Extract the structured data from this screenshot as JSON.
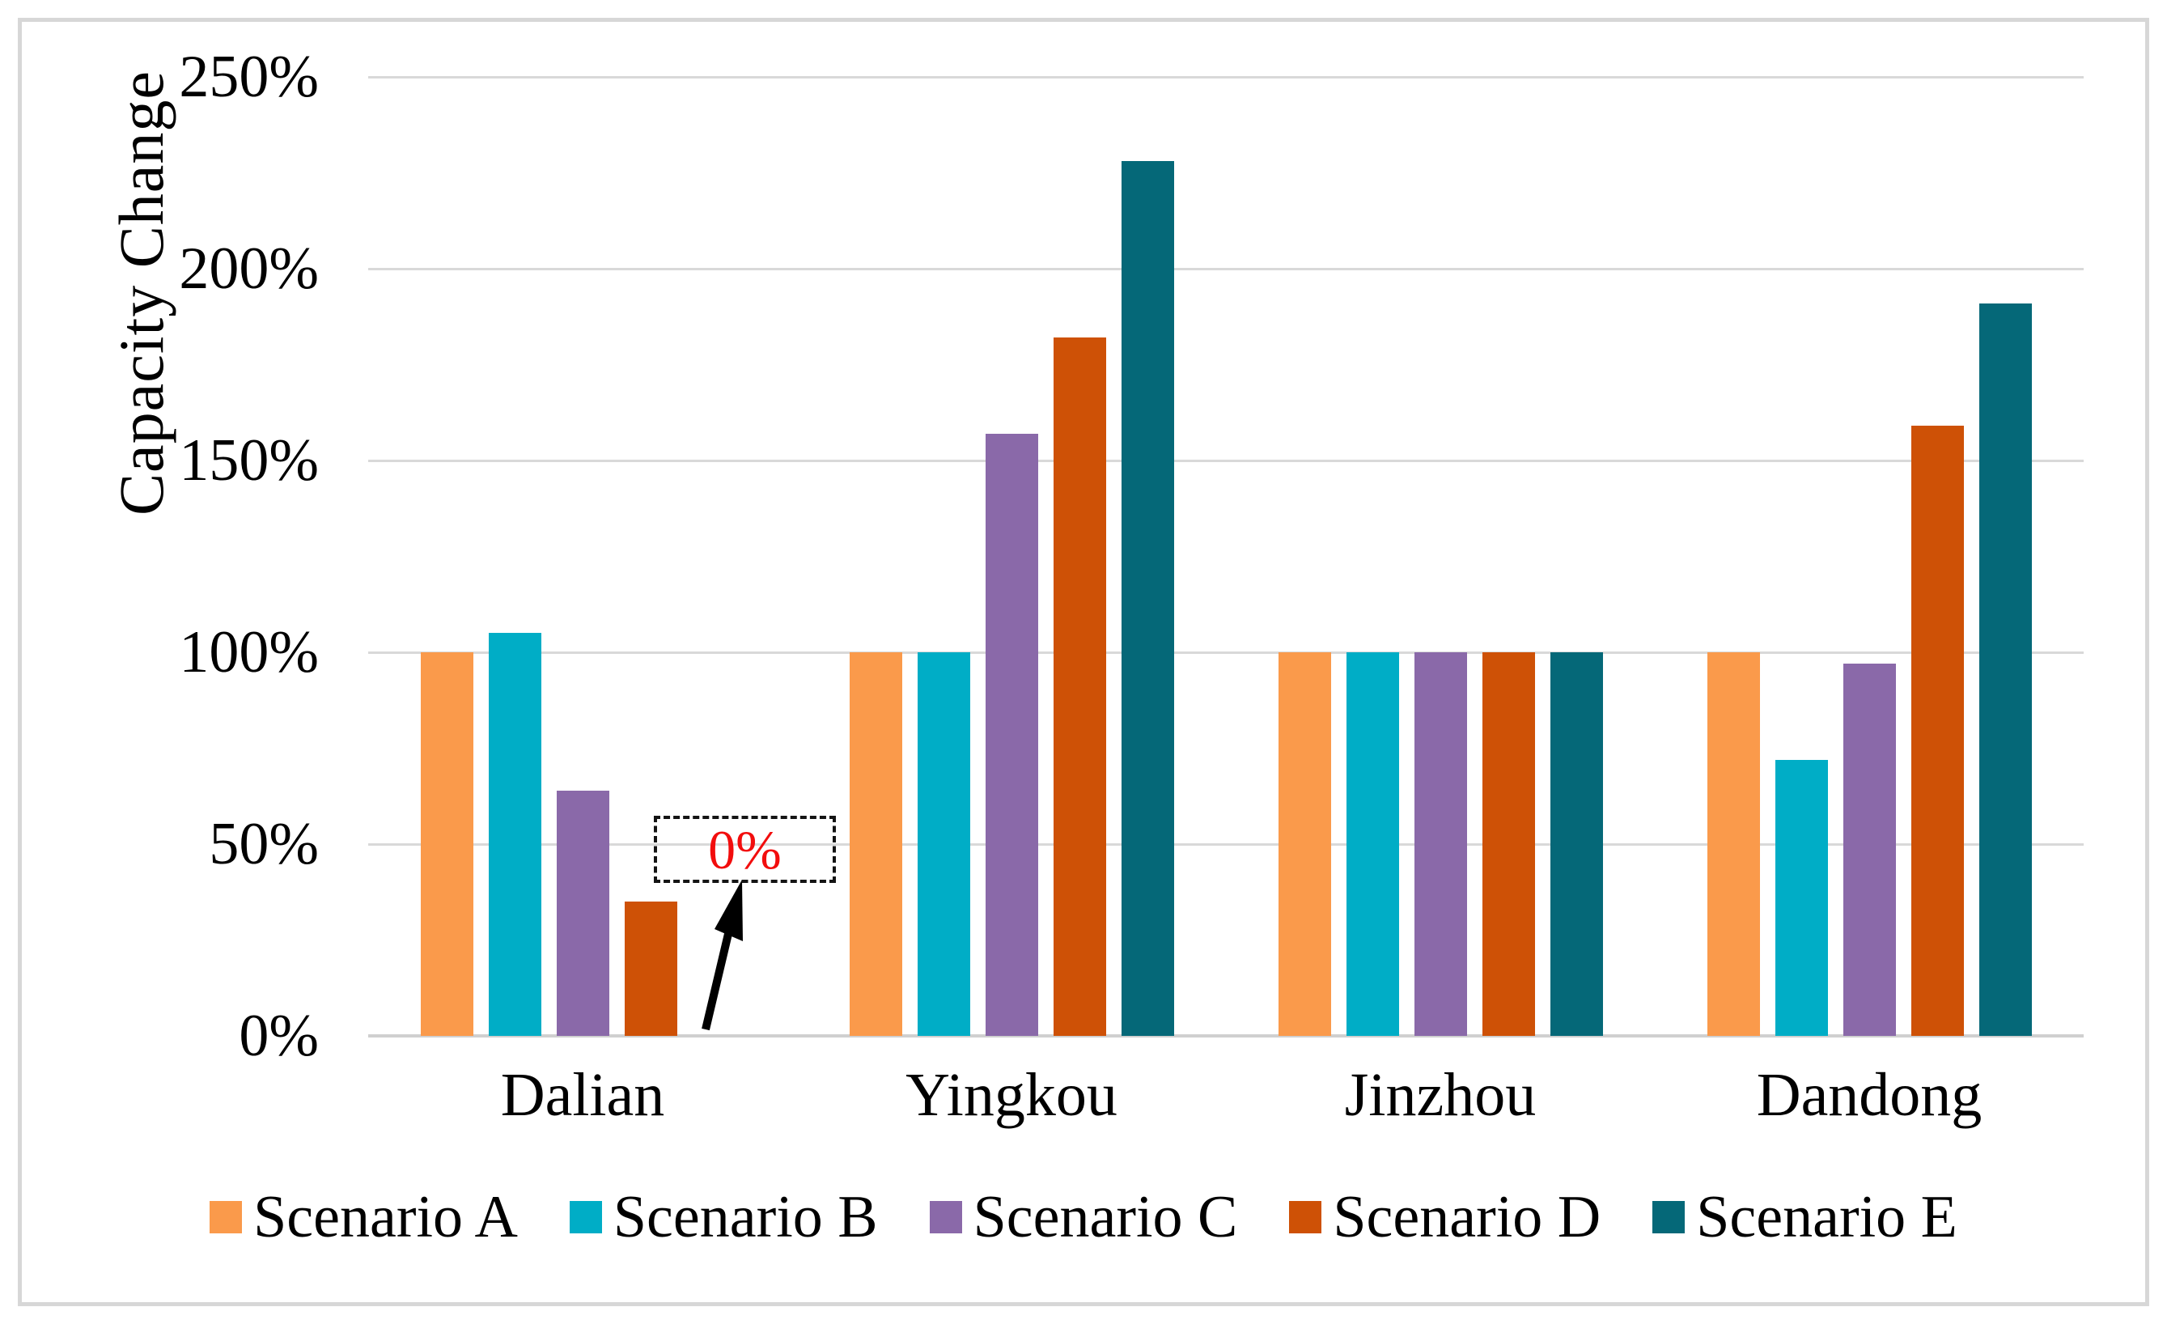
{
  "figure": {
    "y_axis_title": "Capacity Change",
    "y_ticks": [
      "250%",
      "200%",
      "150%",
      "100%",
      "50%",
      "0%"
    ],
    "x_labels": [
      "Dalian",
      "Yingkou",
      "Jinzhou",
      "Dandong"
    ],
    "annotation_text": "0%",
    "colors": {
      "gridline": "#d9d9d9",
      "baseline": "#d0d0d0",
      "frame_border": "#d7d7d7",
      "annotation_text": "#f20d0d",
      "annotation_border": "#141414",
      "arrow": "#000000"
    }
  },
  "chart_data": {
    "type": "bar",
    "title": "",
    "xlabel": "",
    "ylabel": "Capacity Change",
    "categories": [
      "Dalian",
      "Yingkou",
      "Jinzhou",
      "Dandong"
    ],
    "series": [
      {
        "name": "Scenario A",
        "color": "#fa9a4b",
        "values": [
          100,
          100,
          100,
          100
        ]
      },
      {
        "name": "Scenario B",
        "color": "#00adc6",
        "values": [
          105,
          100,
          100,
          72
        ]
      },
      {
        "name": "Scenario C",
        "color": "#8a69a9",
        "values": [
          64,
          157,
          100,
          97
        ]
      },
      {
        "name": "Scenario D",
        "color": "#ce5106",
        "values": [
          35,
          182,
          100,
          159
        ]
      },
      {
        "name": "Scenario E",
        "color": "#056878",
        "values": [
          0,
          228,
          100,
          191
        ]
      }
    ],
    "ylim": [
      0,
      250
    ],
    "y_tick_step": 50,
    "y_tick_format": "percent",
    "grid": "horizontal-only",
    "legend_position": "bottom",
    "annotation": {
      "text": "0%",
      "meaning": "Scenario E bar at Dalian equals 0%",
      "target_category": "Dalian",
      "target_series": "Scenario E",
      "text_color": "#f20d0d",
      "box_style": "black-dashed",
      "arrow": "from baseline up to box"
    }
  }
}
